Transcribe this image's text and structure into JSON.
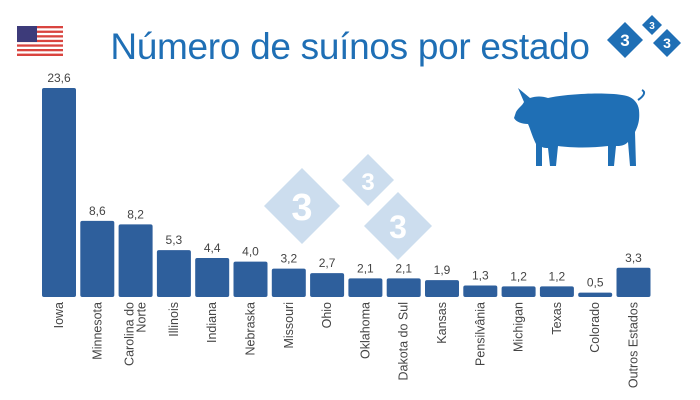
{
  "chart_data": {
    "type": "bar",
    "title": "Número de suínos por estado",
    "categories": [
      "Iowa",
      "Minnesota",
      "Carolina do Norte",
      "Illinois",
      "Indiana",
      "Nebraska",
      "Missouri",
      "Ohio",
      "Oklahoma",
      "Dakota do Sul",
      "Kansas",
      "Pensilvânia",
      "Michigan",
      "Texas",
      "Colorado",
      "Outros Estados"
    ],
    "category_lines": [
      [
        "Iowa"
      ],
      [
        "Minnesota"
      ],
      [
        "Carolina do",
        "Norte"
      ],
      [
        "Illinois"
      ],
      [
        "Indiana"
      ],
      [
        "Nebraska"
      ],
      [
        "Missouri"
      ],
      [
        "Ohio"
      ],
      [
        "Oklahoma"
      ],
      [
        "Dakota do Sul"
      ],
      [
        "Kansas"
      ],
      [
        "Pensilvânia"
      ],
      [
        "Michigan"
      ],
      [
        "Texas"
      ],
      [
        "Colorado"
      ],
      [
        "Outros Estados"
      ]
    ],
    "values": [
      23.6,
      8.6,
      8.2,
      5.3,
      4.4,
      4.0,
      3.2,
      2.7,
      2.1,
      2.1,
      1.9,
      1.3,
      1.2,
      1.2,
      0.5,
      3.3
    ],
    "data_labels": [
      "23,6",
      "8,6",
      "8,2",
      "5,3",
      "4,4",
      "4,0",
      "3,2",
      "2,7",
      "2,1",
      "2,1",
      "1,9",
      "1,3",
      "1,2",
      "1,2",
      "0,5",
      "3,3"
    ],
    "ylim": [
      0,
      23.6
    ],
    "grid": false,
    "bar_color": "#2e5f9c"
  },
  "logo": {
    "text": "333",
    "color": "#1f6fb5"
  },
  "icons": {
    "flag": "usa-flag-icon",
    "pig": "pig-icon",
    "watermark": "333-watermark"
  }
}
